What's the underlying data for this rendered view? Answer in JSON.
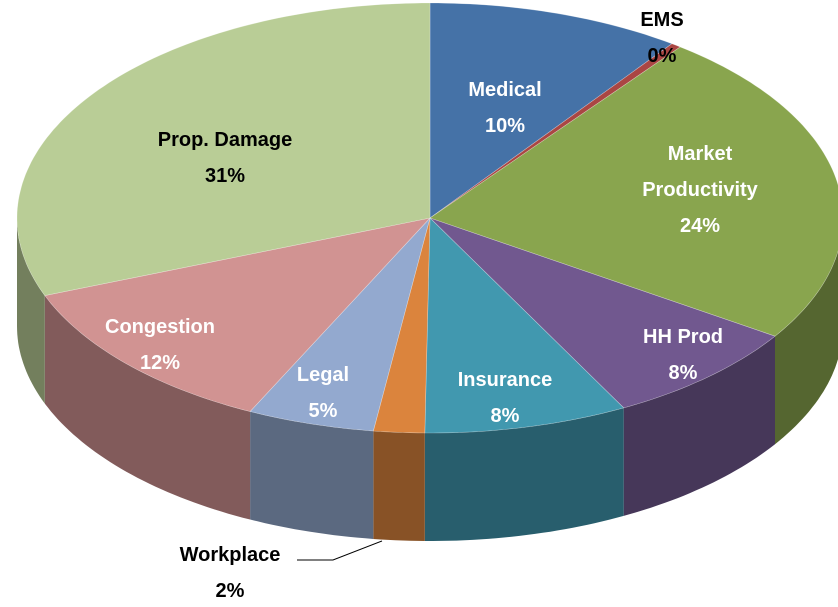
{
  "chart_data": {
    "type": "pie3d",
    "categories": [
      "Medical",
      "EMS",
      "Market Productivity",
      "HH Prod",
      "Insurance",
      "Workplace",
      "Legal",
      "Congestion",
      "Prop. Damage"
    ],
    "values": [
      10,
      0.4,
      24,
      8,
      8,
      2,
      5,
      12,
      31
    ],
    "value_labels": [
      "10%",
      "0%",
      "24%",
      "8%",
      "8%",
      "2%",
      "5%",
      "12%",
      "31%"
    ],
    "colors": [
      "#4572a7",
      "#aa4643",
      "#89a54e",
      "#71588f",
      "#4198af",
      "#db843d",
      "#93a9cf",
      "#d19392",
      "#b9cd96"
    ]
  }
}
